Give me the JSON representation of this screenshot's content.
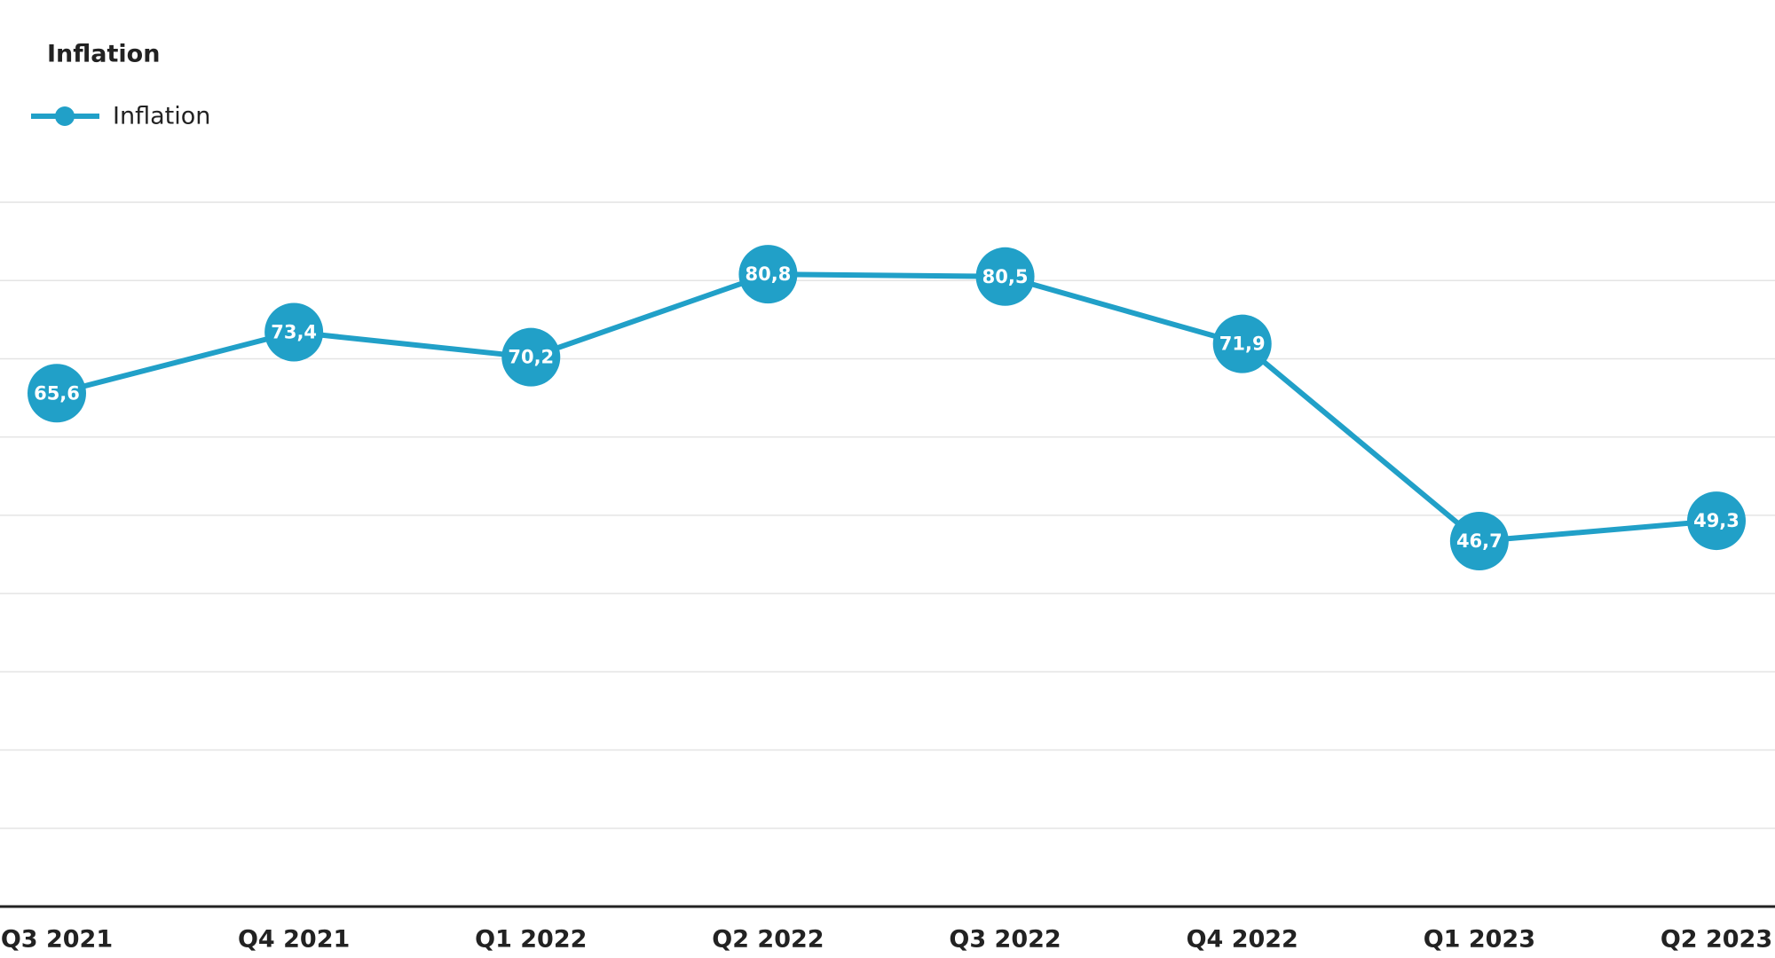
{
  "chart_data": {
    "type": "line",
    "title": "Inflation",
    "categories": [
      "Q3 2021",
      "Q4 2021",
      "Q1 2022",
      "Q2 2022",
      "Q3 2022",
      "Q4 2022",
      "Q1 2023",
      "Q2 2023"
    ],
    "series": [
      {
        "name": "Inflation",
        "color": "#21a0c8",
        "values": [
          65.6,
          73.4,
          70.2,
          80.8,
          80.5,
          71.9,
          46.7,
          49.3
        ],
        "value_labels": [
          "65,6",
          "73,4",
          "70,2",
          "80,8",
          "80,5",
          "71,9",
          "46,7",
          "49,3"
        ]
      }
    ],
    "ylim": [
      0,
      90
    ],
    "yticks": [
      0,
      10,
      20,
      30,
      40,
      50,
      60,
      70,
      80,
      90
    ],
    "grid": true,
    "legend": "top-left"
  }
}
